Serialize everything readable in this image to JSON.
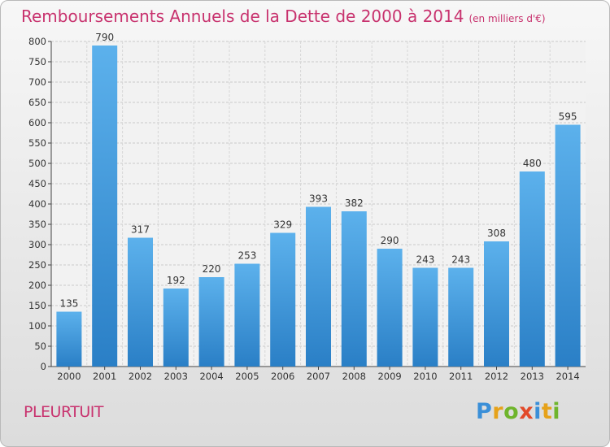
{
  "chart_data": {
    "type": "bar",
    "title": "Remboursements Annuels de la Dette de 2000 à 2014",
    "unit": "(en milliers d'€)",
    "categories": [
      "2000",
      "2001",
      "2002",
      "2003",
      "2004",
      "2005",
      "2006",
      "2007",
      "2008",
      "2009",
      "2010",
      "2011",
      "2012",
      "2013",
      "2014"
    ],
    "values": [
      135,
      790,
      317,
      192,
      220,
      253,
      329,
      393,
      382,
      290,
      243,
      243,
      308,
      480,
      595
    ],
    "ylim": [
      0,
      800
    ],
    "yticks": [
      0,
      50,
      100,
      150,
      200,
      250,
      300,
      350,
      400,
      450,
      500,
      550,
      600,
      650,
      700,
      750,
      800
    ],
    "grid": true,
    "bar_color": "#3f97dc"
  },
  "commune": "PLEURTUIT",
  "logo": [
    "P",
    "r",
    "o",
    "x",
    "i",
    "t",
    "i"
  ]
}
